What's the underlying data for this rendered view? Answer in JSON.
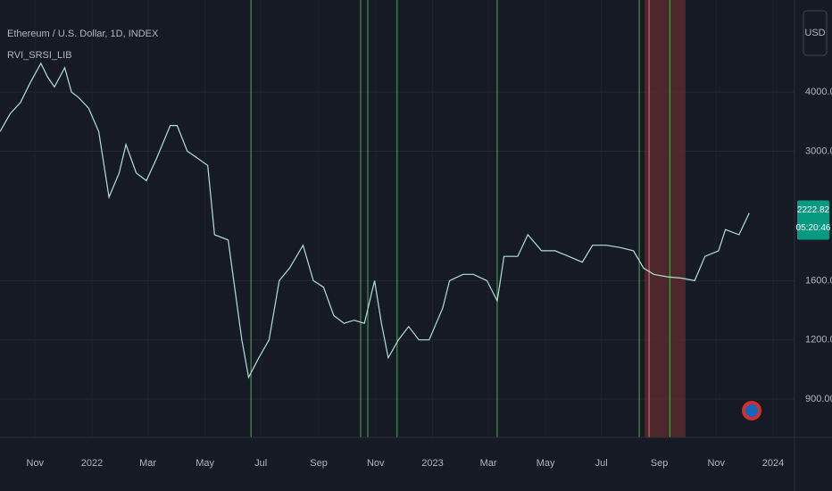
{
  "chart_data": {
    "type": "line",
    "title": "Ethereum / U.S. Dollar, 1D, INDEX",
    "indicator": "RVI_SRSI_LIB",
    "currency_button": "USD",
    "countdown": "05:20:46",
    "log_scale": true,
    "grid": true,
    "x": [
      2021.73,
      2021.76,
      2021.79,
      2021.82,
      2021.85,
      2021.87,
      2021.89,
      2021.92,
      2021.94,
      2021.96,
      2021.99,
      2022.02,
      2022.05,
      2022.08,
      2022.1,
      2022.13,
      2022.16,
      2022.19,
      2022.23,
      2022.25,
      2022.28,
      2022.31,
      2022.34,
      2022.36,
      2022.4,
      2022.44,
      2022.46,
      2022.49,
      2022.52,
      2022.55,
      2022.58,
      2022.62,
      2022.65,
      2022.68,
      2022.71,
      2022.74,
      2022.77,
      2022.8,
      2022.83,
      2022.85,
      2022.87,
      2022.9,
      2022.93,
      2022.96,
      2022.99,
      2023.03,
      2023.05,
      2023.09,
      2023.12,
      2023.16,
      2023.19,
      2023.21,
      2023.25,
      2023.28,
      2023.32,
      2023.36,
      2023.4,
      2023.44,
      2023.47,
      2023.51,
      2023.55,
      2023.59,
      2023.62,
      2023.65,
      2023.69,
      2023.73,
      2023.77,
      2023.8,
      2023.84,
      2023.86,
      2023.9,
      2023.93
    ],
    "series": [
      {
        "name": "ETHUSD",
        "color": "#b2dfdb",
        "values": [
          3300,
          3600,
          3800,
          4200,
          4600,
          4300,
          4100,
          4500,
          4000,
          3900,
          3700,
          3300,
          2400,
          2700,
          3100,
          2700,
          2600,
          2900,
          3400,
          3400,
          3000,
          2900,
          2800,
          2000,
          1950,
          1200,
          1000,
          1100,
          1200,
          1600,
          1700,
          1900,
          1600,
          1550,
          1350,
          1300,
          1320,
          1300,
          1600,
          1300,
          1100,
          1200,
          1280,
          1200,
          1200,
          1400,
          1600,
          1650,
          1650,
          1600,
          1450,
          1800,
          1800,
          2000,
          1850,
          1850,
          1800,
          1750,
          1900,
          1900,
          1880,
          1850,
          1700,
          1650,
          1630,
          1620,
          1600,
          1800,
          1850,
          2050,
          2000,
          2222.82
        ]
      }
    ],
    "signals": [
      {
        "x": 2022.467,
        "color": "#4caf50"
      },
      {
        "x": 2022.789,
        "color": "#4caf50"
      },
      {
        "x": 2022.81,
        "color": "#4caf50"
      },
      {
        "x": 2022.896,
        "color": "#4caf50"
      },
      {
        "x": 2023.19,
        "color": "#4caf50"
      },
      {
        "x": 2023.607,
        "color": "#4caf50"
      },
      {
        "x": 2023.636,
        "color": "#e57373"
      },
      {
        "x": 2023.697,
        "color": "#4caf50"
      }
    ],
    "shaded_range": {
      "x": [
        2023.623,
        2023.743
      ],
      "color": "#5c2a2e"
    },
    "xlim": [
      2021.73,
      2024.063
    ],
    "ylim": [
      747,
      6255
    ],
    "xticks": [
      {
        "value": 2021.833,
        "label": "Nov"
      },
      {
        "value": 2022.0,
        "label": "2022"
      },
      {
        "value": 2022.164,
        "label": "Mar"
      },
      {
        "value": 2022.332,
        "label": "May"
      },
      {
        "value": 2022.496,
        "label": "Jul"
      },
      {
        "value": 2022.666,
        "label": "Sep"
      },
      {
        "value": 2022.833,
        "label": "Nov"
      },
      {
        "value": 2023.0,
        "label": "2023"
      },
      {
        "value": 2023.164,
        "label": "Mar"
      },
      {
        "value": 2023.332,
        "label": "May"
      },
      {
        "value": 2023.496,
        "label": "Jul"
      },
      {
        "value": 2023.666,
        "label": "Sep"
      },
      {
        "value": 2023.833,
        "label": "Nov"
      },
      {
        "value": 2024.0,
        "label": "2024"
      }
    ],
    "yticks": [
      {
        "value": 4000,
        "label": "4000.00"
      },
      {
        "value": 3000,
        "label": "3000.00"
      },
      {
        "value": 1600,
        "label": "1600.00"
      },
      {
        "value": 1200,
        "label": "1200.00"
      },
      {
        "value": 900,
        "label": "900.00"
      }
    ]
  }
}
